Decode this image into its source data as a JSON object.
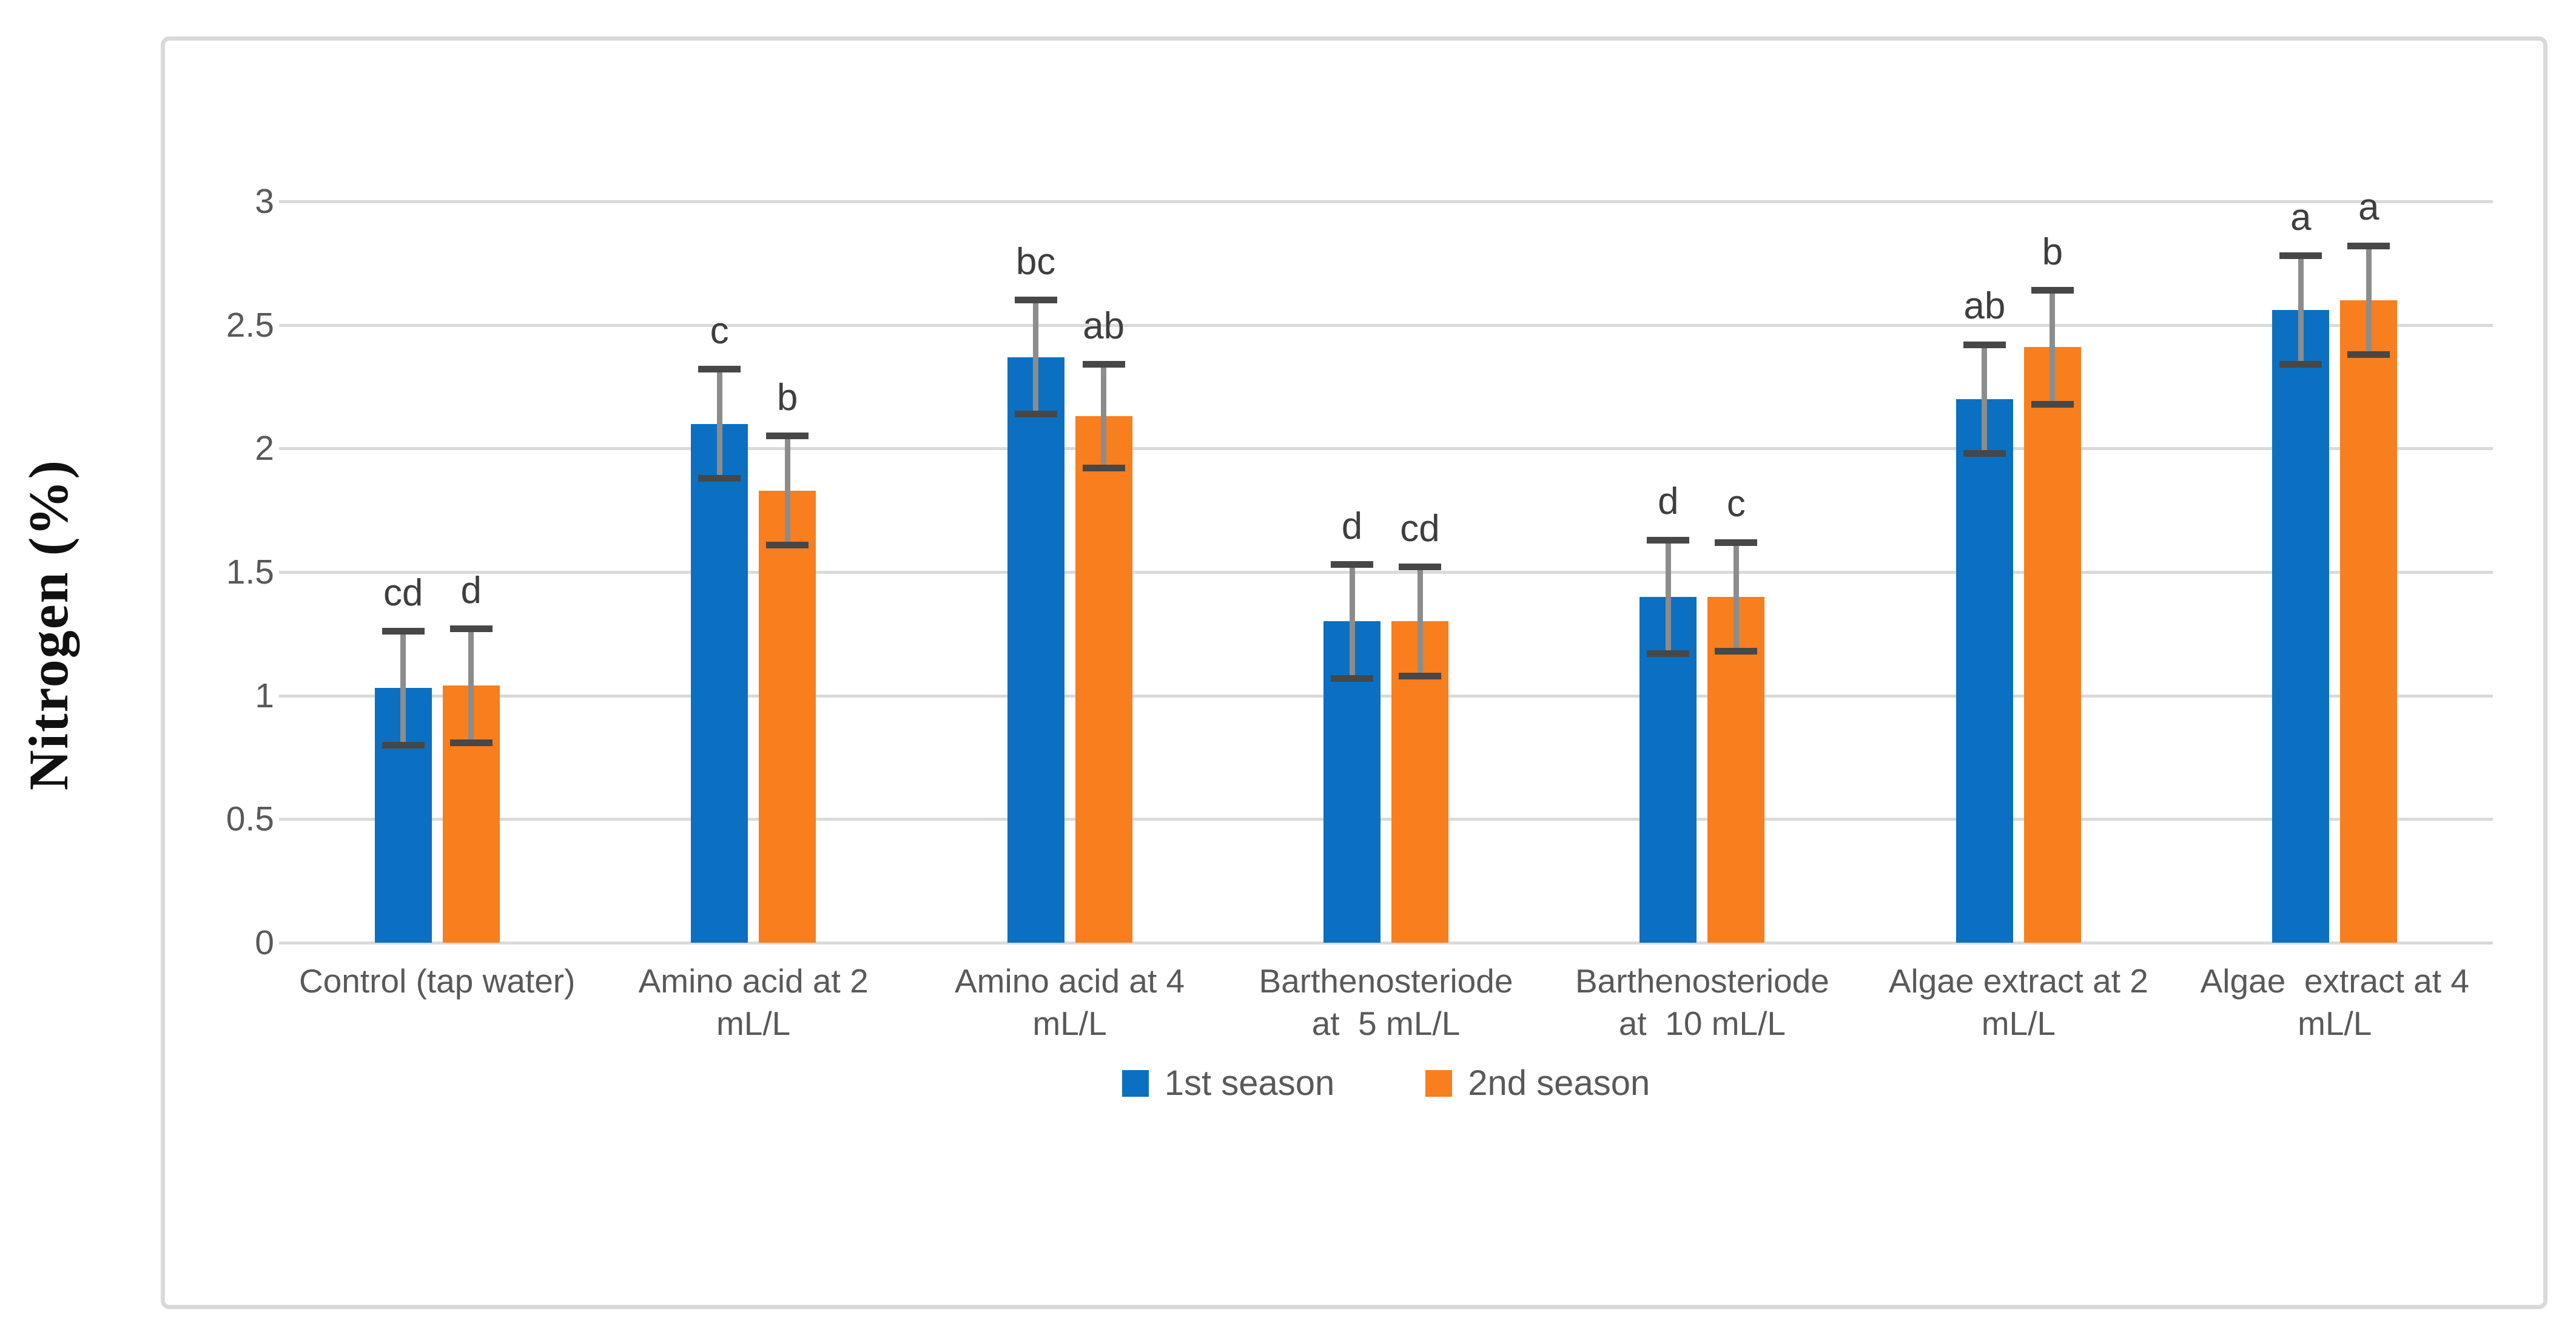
{
  "figure": {
    "y_axis_title": "Nitrogen (%)",
    "background_color": "#FFFFFF",
    "border_color": "#D9D9D9"
  },
  "chart_data": {
    "type": "bar",
    "title": "",
    "xlabel": "",
    "ylabel": "Nitrogen (%)",
    "ylim": [
      0,
      3
    ],
    "ytick_step": 0.5,
    "ytick_labels": [
      "0",
      "0.5",
      "1",
      "1.5",
      "2",
      "2.5",
      "3"
    ],
    "grid": true,
    "gridline_color": "#DADADA",
    "tick_label_color": "#595959",
    "annotation_color": "#3E3E3E",
    "error_bar_line_color": "#8C8C8C",
    "error_bar_cap_color": "#474747",
    "legend_position": "bottom",
    "categories": [
      "Control (tap water)",
      "Amino acid at 2\nmL/L",
      "Amino acid at 4\nmL/L",
      "Barthenosteriode\nat  5 mL/L",
      "Barthenosteriode\nat  10 mL/L",
      "Algae extract at 2\nmL/L",
      "Algae  extract at 4\nmL/L"
    ],
    "series": [
      {
        "name": "1st season",
        "color": "#0B70C1",
        "values": [
          1.03,
          2.1,
          2.37,
          1.3,
          1.4,
          2.2,
          2.56
        ],
        "errors": [
          0.23,
          0.22,
          0.23,
          0.23,
          0.23,
          0.22,
          0.22
        ],
        "letters": [
          "cd",
          "c",
          "bc",
          "d",
          "d",
          "ab",
          "a"
        ]
      },
      {
        "name": "2nd season",
        "color": "#F87E1E",
        "values": [
          1.04,
          1.83,
          2.13,
          1.3,
          1.4,
          2.41,
          2.6
        ],
        "errors": [
          0.23,
          0.22,
          0.21,
          0.22,
          0.22,
          0.23,
          0.22
        ],
        "letters": [
          "d",
          "b",
          "ab",
          "cd",
          "c",
          "b",
          "a"
        ]
      }
    ]
  }
}
